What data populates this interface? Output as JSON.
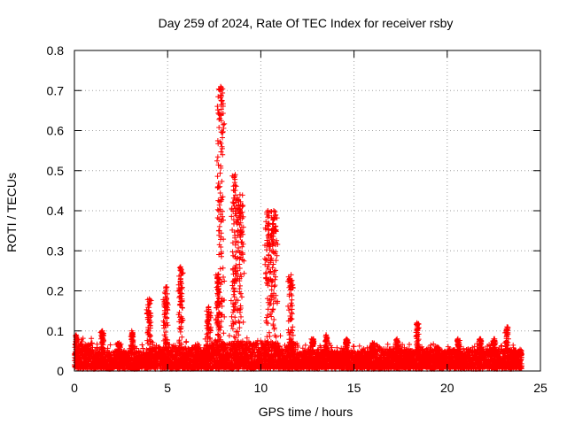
{
  "chart_data": {
    "type": "scatter",
    "title": "Day 259 of 2024, Rate Of TEC Index for receiver rsby",
    "xlabel": "GPS time / hours",
    "ylabel": "ROTI / TECUs",
    "xlim": [
      0,
      25
    ],
    "ylim": [
      0,
      0.8
    ],
    "xticks": [
      0,
      5,
      10,
      15,
      20,
      25
    ],
    "yticks": [
      0,
      0.1,
      0.2,
      0.3,
      0.4,
      0.5,
      0.6,
      0.7,
      0.8
    ],
    "grid": true,
    "legend": "none",
    "marker": "+",
    "colors": {
      "series": "#ff0000",
      "grid": "#a0a0a0",
      "axis": "#000000"
    },
    "series": [
      {
        "x_start": 0.0,
        "x_end": 24.0,
        "x_step": 0.0083,
        "baseline": {
          "min": 0.0,
          "max": 0.06,
          "segments": [
            {
              "x": [
                0,
                1
              ],
              "max": 0.07
            },
            {
              "x": [
                1,
                4
              ],
              "max": 0.05
            },
            {
              "x": [
                4,
                7
              ],
              "max": 0.06
            },
            {
              "x": [
                7,
                12
              ],
              "max": 0.07
            },
            {
              "x": [
                12,
                16
              ],
              "max": 0.05
            },
            {
              "x": [
                16,
                24
              ],
              "max": 0.055
            }
          ]
        },
        "spikes": [
          {
            "x": 0.1,
            "y": 0.09
          },
          {
            "x": 1.5,
            "y": 0.1
          },
          {
            "x": 2.4,
            "y": 0.07
          },
          {
            "x": 3.1,
            "y": 0.1
          },
          {
            "x": 4.0,
            "y": 0.18
          },
          {
            "x": 4.9,
            "y": 0.21
          },
          {
            "x": 5.7,
            "y": 0.26
          },
          {
            "x": 7.2,
            "y": 0.16
          },
          {
            "x": 7.7,
            "y": 0.24
          },
          {
            "x": 7.85,
            "y": 0.71
          },
          {
            "x": 8.6,
            "y": 0.49
          },
          {
            "x": 8.9,
            "y": 0.44
          },
          {
            "x": 10.4,
            "y": 0.4
          },
          {
            "x": 10.7,
            "y": 0.4
          },
          {
            "x": 11.6,
            "y": 0.24
          },
          {
            "x": 12.8,
            "y": 0.08
          },
          {
            "x": 13.5,
            "y": 0.09
          },
          {
            "x": 14.6,
            "y": 0.08
          },
          {
            "x": 16.0,
            "y": 0.07
          },
          {
            "x": 17.3,
            "y": 0.08
          },
          {
            "x": 18.4,
            "y": 0.12
          },
          {
            "x": 19.5,
            "y": 0.06
          },
          {
            "x": 20.6,
            "y": 0.08
          },
          {
            "x": 21.8,
            "y": 0.08
          },
          {
            "x": 22.5,
            "y": 0.08
          },
          {
            "x": 23.2,
            "y": 0.11
          },
          {
            "x": 23.9,
            "y": 0.05
          }
        ]
      }
    ]
  }
}
